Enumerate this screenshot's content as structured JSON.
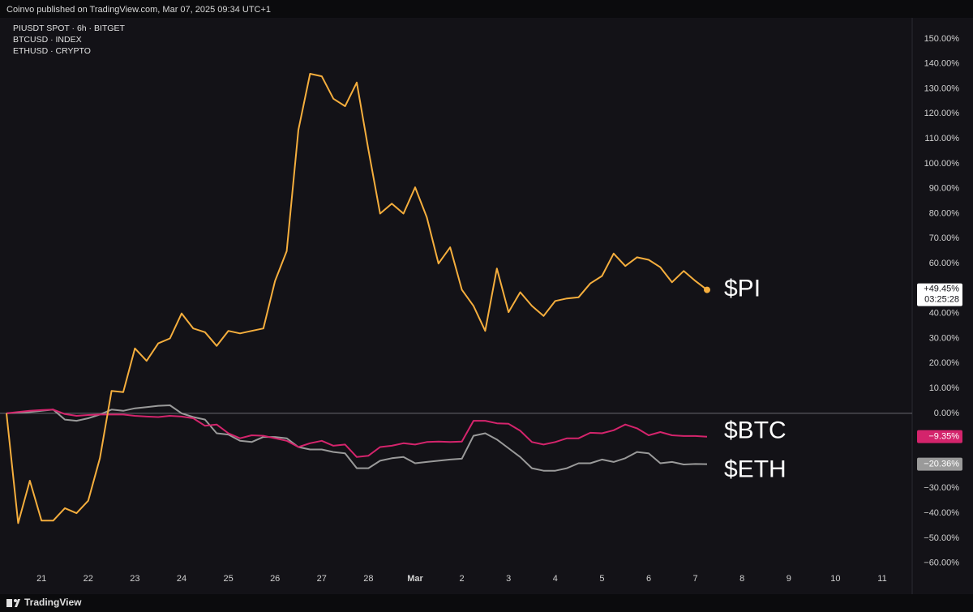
{
  "header": {
    "text": "Coinvo published on TradingView.com, Mar 07, 2025 09:34 UTC+1"
  },
  "footer": {
    "brand": "TradingView"
  },
  "chart_data": {
    "type": "line",
    "categories": [
      null,
      null,
      null,
      "21",
      null,
      null,
      null,
      "22",
      null,
      null,
      null,
      "23",
      null,
      null,
      null,
      "24",
      null,
      null,
      null,
      "25",
      null,
      null,
      null,
      "26",
      null,
      null,
      null,
      "27",
      null,
      null,
      null,
      "28",
      null,
      null,
      null,
      "Mar",
      null,
      null,
      null,
      "2",
      null,
      null,
      null,
      "3",
      null,
      null,
      null,
      "4",
      null,
      null,
      null,
      "5",
      null,
      null,
      null,
      "6",
      null,
      null,
      null,
      "7",
      null,
      null,
      null,
      "8",
      null,
      null,
      null,
      "9",
      null,
      null,
      null,
      "10",
      null,
      null,
      null,
      "11",
      null,
      null
    ],
    "ylim": [
      -62.7,
      158.4
    ],
    "yticks": [
      {
        "value": 150,
        "label": "150.00%"
      },
      {
        "value": 140,
        "label": "140.00%"
      },
      {
        "value": 130,
        "label": "130.00%"
      },
      {
        "value": 120,
        "label": "120.00%"
      },
      {
        "value": 110,
        "label": "110.00%"
      },
      {
        "value": 100,
        "label": "100.00%"
      },
      {
        "value": 90,
        "label": "90.00%"
      },
      {
        "value": 80,
        "label": "80.00%"
      },
      {
        "value": 70,
        "label": "70.00%"
      },
      {
        "value": 60,
        "label": "60.00%"
      },
      {
        "value": 50,
        "label": "50.00%"
      },
      {
        "value": 40,
        "label": "40.00%"
      },
      {
        "value": 30,
        "label": "30.00%"
      },
      {
        "value": 20,
        "label": "20.00%"
      },
      {
        "value": 10,
        "label": "10.00%"
      },
      {
        "value": 0,
        "label": "0.00%"
      },
      {
        "value": -10,
        "label": "−10.00%"
      },
      {
        "value": -20,
        "label": "−20.00%"
      },
      {
        "value": -30,
        "label": "−30.00%"
      },
      {
        "value": -40,
        "label": "−40.00%"
      },
      {
        "value": -50,
        "label": "−50.00%"
      },
      {
        "value": -60,
        "label": "−60.00%"
      }
    ],
    "countdown": "03:25:28",
    "series": [
      {
        "name": "PIUSDT SPOT · 6h · BITGET",
        "label": "$PI",
        "last_label": "+49.45%",
        "color": "#f5ae3d",
        "values": [
          0,
          -44,
          -27,
          -43,
          -43,
          -38,
          -40,
          -35,
          -18,
          9,
          8.5,
          26,
          21,
          28,
          30,
          40,
          34,
          32.5,
          27,
          33,
          32,
          33,
          34,
          53,
          65,
          113.5,
          136,
          135,
          126,
          123,
          132.5,
          105.5,
          80,
          84,
          80,
          90.5,
          78.5,
          60,
          66.5,
          49.5,
          43,
          33,
          58,
          40.5,
          48.5,
          43,
          39,
          45,
          46,
          46.5,
          52,
          55,
          64,
          59,
          62.5,
          61.5,
          58.5,
          52.5,
          57,
          53,
          49.45,
          null,
          null,
          null,
          null,
          null,
          null,
          null,
          null,
          null,
          null,
          null,
          null,
          null,
          null,
          null,
          null,
          null
        ]
      },
      {
        "name": "BTCUSD · INDEX",
        "label": "$BTC",
        "last_label": "−9.35%",
        "color": "#d4246c",
        "values": [
          0,
          0.5,
          1,
          1.3,
          1.5,
          -0.3,
          -1,
          -0.7,
          -0.5,
          -0.5,
          -0.5,
          -1,
          -1.3,
          -1.5,
          -1,
          -1.3,
          -2,
          -5,
          -4.5,
          -8,
          -10,
          -8.8,
          -9,
          -10,
          -11,
          -13.5,
          -12,
          -11,
          -13,
          -12.5,
          -17.5,
          -17,
          -13.5,
          -13,
          -12,
          -12.5,
          -11.5,
          -11.3,
          -11.5,
          -11.3,
          -3,
          -3,
          -4,
          -4.2,
          -7,
          -11.5,
          -12.5,
          -11.5,
          -10,
          -10,
          -7.8,
          -8,
          -6.8,
          -4.5,
          -6,
          -8.8,
          -7.5,
          -8.8,
          -9.1,
          -9.1,
          -9.35,
          null,
          null,
          null,
          null,
          null,
          null,
          null,
          null,
          null,
          null,
          null,
          null,
          null,
          null,
          null,
          null,
          null
        ]
      },
      {
        "name": "ETHUSD · CRYPTO",
        "label": "$ETH",
        "last_label": "−20.36%",
        "color": "#9a9a9a",
        "values": [
          0,
          0.3,
          0.5,
          1,
          1.5,
          -2.5,
          -3,
          -2,
          -0.5,
          1.5,
          1,
          2,
          2.5,
          3,
          3.2,
          0,
          -1.5,
          -2.5,
          -8,
          -8.5,
          -11,
          -11.5,
          -9.5,
          -9.5,
          -10,
          -13.5,
          -14.5,
          -14.5,
          -15.5,
          -16,
          -22,
          -22,
          -19,
          -18,
          -17.5,
          -20,
          -19.5,
          -19,
          -18.5,
          -18.2,
          -9,
          -8,
          -10.5,
          -14,
          -17.5,
          -22,
          -23,
          -23,
          -22,
          -20,
          -20,
          -18.5,
          -19.5,
          -18,
          -15.5,
          -16,
          -20,
          -19.5,
          -20.5,
          -20.3,
          -20.36,
          null,
          null,
          null,
          null,
          null,
          null,
          null,
          null,
          null,
          null,
          null,
          null,
          null,
          null,
          null,
          null,
          null
        ]
      }
    ]
  }
}
